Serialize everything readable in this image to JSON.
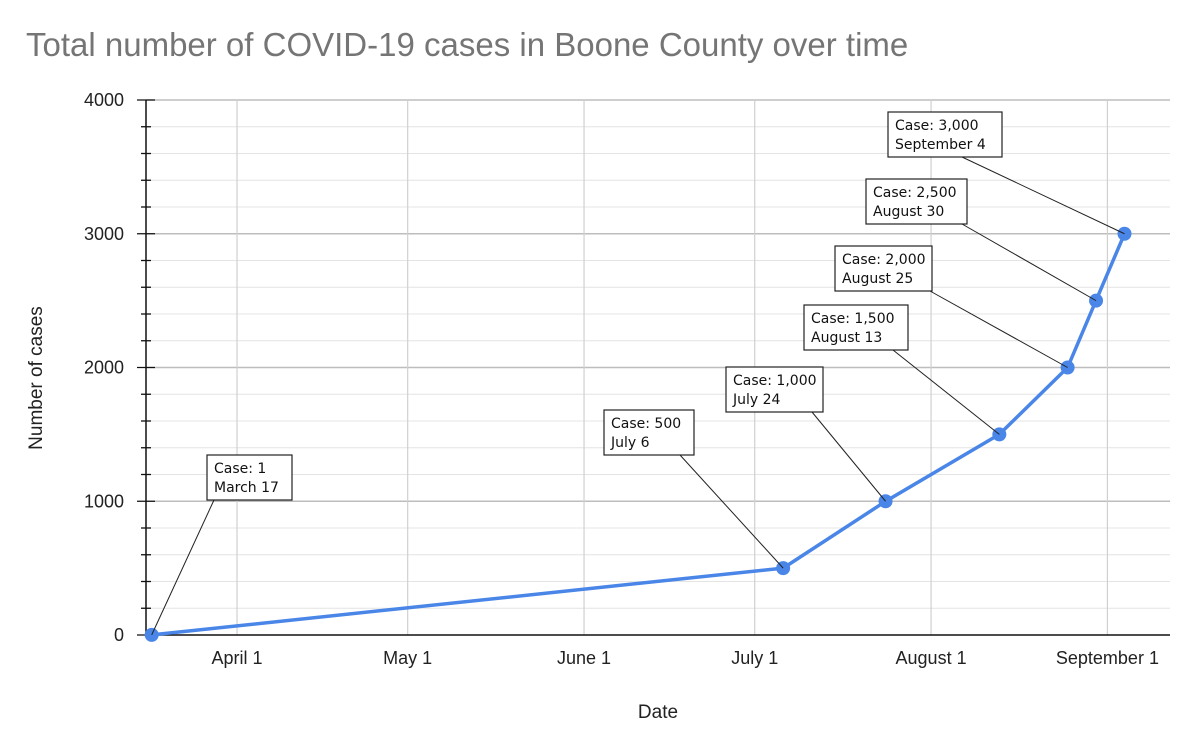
{
  "chart_data": {
    "type": "line",
    "title": "Total number of COVID-19 cases in Boone County over time",
    "xlabel": "Date",
    "ylabel": "Number of cases",
    "x_axis_type": "date",
    "xlim": [
      "2020-03-16",
      "2020-09-12"
    ],
    "ylim": [
      0,
      4000
    ],
    "x_ticks": [
      {
        "date": "2020-04-01",
        "label": "April 1"
      },
      {
        "date": "2020-05-01",
        "label": "May 1"
      },
      {
        "date": "2020-06-01",
        "label": "June 1"
      },
      {
        "date": "2020-07-01",
        "label": "July 1"
      },
      {
        "date": "2020-08-01",
        "label": "August 1"
      },
      {
        "date": "2020-09-01",
        "label": "September 1"
      }
    ],
    "y_ticks": [
      0,
      1000,
      2000,
      3000,
      4000
    ],
    "grid": true,
    "series_color": "#4a86e8",
    "series": [
      {
        "points": [
          {
            "date": "2020-03-17",
            "value": 1
          },
          {
            "date": "2020-07-06",
            "value": 500
          },
          {
            "date": "2020-07-24",
            "value": 1000
          },
          {
            "date": "2020-08-13",
            "value": 1500
          },
          {
            "date": "2020-08-25",
            "value": 2000
          },
          {
            "date": "2020-08-30",
            "value": 2500
          },
          {
            "date": "2020-09-04",
            "value": 3000
          }
        ]
      }
    ],
    "annotations": [
      {
        "date": "2020-03-17",
        "value": 1,
        "line1": "Case: 1",
        "line2": "March 17"
      },
      {
        "date": "2020-07-06",
        "value": 500,
        "line1": "Case: 500",
        "line2": "July 6"
      },
      {
        "date": "2020-07-24",
        "value": 1000,
        "line1": "Case: 1,000",
        "line2": "July 24"
      },
      {
        "date": "2020-08-13",
        "value": 1500,
        "line1": "Case: 1,500",
        "line2": "August 13"
      },
      {
        "date": "2020-08-25",
        "value": 2000,
        "line1": "Case: 2,000",
        "line2": "August 25"
      },
      {
        "date": "2020-08-30",
        "value": 2500,
        "line1": "Case: 2,500",
        "line2": "August 30"
      },
      {
        "date": "2020-09-04",
        "value": 3000,
        "line1": "Case: 3,000",
        "line2": "September 4"
      }
    ]
  }
}
